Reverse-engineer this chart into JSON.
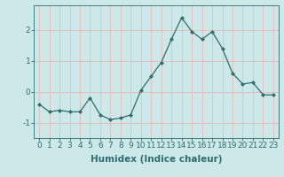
{
  "x": [
    0,
    1,
    2,
    3,
    4,
    5,
    6,
    7,
    8,
    9,
    10,
    11,
    12,
    13,
    14,
    15,
    16,
    17,
    18,
    19,
    20,
    21,
    22,
    23
  ],
  "y": [
    -0.4,
    -0.65,
    -0.6,
    -0.65,
    -0.65,
    -0.2,
    -0.75,
    -0.9,
    -0.85,
    -0.75,
    0.05,
    0.5,
    0.95,
    1.7,
    2.4,
    1.95,
    1.7,
    1.95,
    1.4,
    0.6,
    0.25,
    0.3,
    -0.1,
    -0.1
  ],
  "line_color": "#2e6e6e",
  "marker": "D",
  "marker_size": 2,
  "bg_color": "#cce8e8",
  "grid_color": "#e8b8b8",
  "xlabel": "Humidex (Indice chaleur)",
  "xlim": [
    -0.5,
    23.5
  ],
  "ylim": [
    -1.5,
    2.8
  ],
  "yticks": [
    -1,
    0,
    1,
    2
  ],
  "xticks": [
    0,
    1,
    2,
    3,
    4,
    5,
    6,
    7,
    8,
    9,
    10,
    11,
    12,
    13,
    14,
    15,
    16,
    17,
    18,
    19,
    20,
    21,
    22,
    23
  ],
  "xlabel_fontsize": 7.5,
  "tick_fontsize": 6.5,
  "linewidth": 0.9
}
